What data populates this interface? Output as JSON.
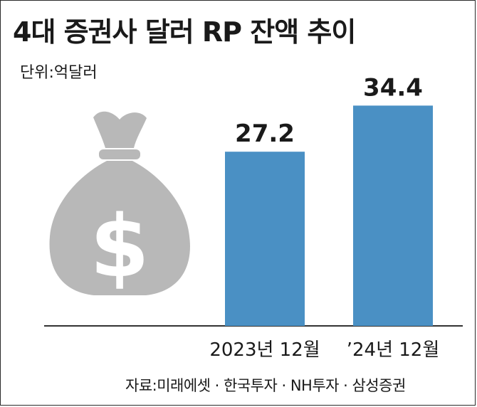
{
  "title": "4대 증권사 달러 RP 잔액 추이",
  "unit_label": "단위:억달러",
  "source": "자료:미래에셋 · 한국투자 · NH투자 · 삼성증권",
  "icon": "money-bag-icon",
  "colors": {
    "bar": "#4a90c4",
    "icon": "#b8b8b8",
    "text": "#1a1a1a"
  },
  "chart_data": {
    "type": "bar",
    "categories": [
      "2023년 12월",
      "’24년 12월"
    ],
    "values": [
      27.2,
      34.4
    ],
    "value_labels": [
      "27.2",
      "34.4"
    ],
    "title": "4대 증권사 달러 RP 잔액 추이",
    "xlabel": "",
    "ylabel": "",
    "unit": "억달러",
    "ylim": [
      0,
      40
    ],
    "grid": false
  }
}
